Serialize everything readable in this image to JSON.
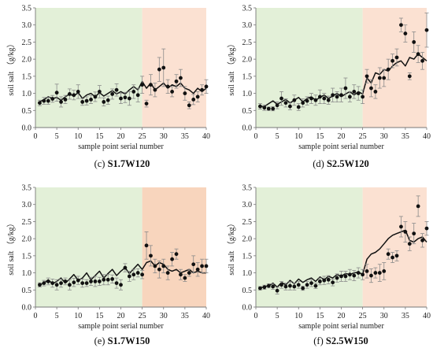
{
  "chart_data": [
    {
      "type": "scatter",
      "panel_letter": "(c)",
      "panel_name": " S1.7W120",
      "xlabel": "sample point serial number",
      "ylabel": "soil salt （g/kg）",
      "xlim": [
        0,
        40
      ],
      "ylim": [
        0,
        3.5
      ],
      "xticks": [
        0,
        5,
        10,
        15,
        20,
        25,
        30,
        35,
        40
      ],
      "yticks": [
        0.0,
        0.5,
        1.0,
        1.5,
        2.0,
        2.5,
        3.0,
        3.5
      ],
      "regions": [
        {
          "from": 0,
          "to": 25,
          "color": "#e3f0d8"
        },
        {
          "from": 25,
          "to": 40,
          "color": "#fbe1d2"
        }
      ],
      "series": [
        {
          "kind": "points",
          "x": [
            1,
            2,
            3,
            4,
            5,
            6,
            7,
            8,
            9,
            10,
            11,
            12,
            13,
            14,
            15,
            16,
            17,
            18,
            19,
            20,
            21,
            22,
            23,
            24,
            25,
            26,
            27,
            28,
            29,
            30,
            31,
            32,
            33,
            34,
            35,
            36,
            37,
            38,
            39,
            40
          ],
          "y": [
            0.72,
            0.78,
            0.78,
            0.84,
            1.02,
            0.75,
            0.82,
            0.98,
            0.95,
            1.05,
            0.75,
            0.78,
            0.82,
            0.9,
            1.05,
            0.75,
            0.8,
            0.98,
            1.1,
            0.85,
            0.88,
            0.85,
            1.05,
            0.95,
            1.25,
            0.7,
            1.25,
            1.1,
            1.7,
            1.75,
            1.2,
            1.05,
            1.35,
            1.45,
            1.0,
            0.65,
            0.82,
            0.9,
            1.1,
            1.2
          ],
          "err": [
            0.08,
            0.1,
            0.1,
            0.1,
            0.25,
            0.15,
            0.12,
            0.15,
            0.14,
            0.2,
            0.1,
            0.12,
            0.12,
            0.14,
            0.18,
            0.12,
            0.12,
            0.15,
            0.18,
            0.15,
            0.15,
            0.2,
            0.2,
            0.2,
            0.25,
            0.1,
            0.3,
            0.2,
            0.35,
            0.55,
            0.2,
            0.15,
            0.2,
            0.25,
            0.2,
            0.1,
            0.15,
            0.15,
            0.15,
            0.2
          ]
        },
        {
          "kind": "line",
          "x": [
            1,
            2,
            3,
            4,
            5,
            6,
            7,
            8,
            9,
            10,
            11,
            12,
            13,
            14,
            15,
            16,
            17,
            18,
            19,
            20,
            21,
            22,
            23,
            24,
            25,
            26,
            27,
            28,
            29,
            30,
            31,
            32,
            33,
            34,
            35,
            36,
            37,
            38,
            39,
            40
          ],
          "y": [
            0.75,
            0.82,
            0.9,
            0.85,
            0.88,
            0.8,
            0.9,
            0.98,
            0.92,
            1.02,
            0.85,
            0.95,
            1.0,
            0.9,
            1.02,
            0.92,
            1.0,
            1.08,
            0.98,
            1.05,
            0.98,
            1.1,
            1.2,
            1.1,
            1.35,
            1.15,
            1.3,
            1.1,
            1.2,
            1.3,
            1.15,
            1.25,
            1.2,
            1.3,
            1.15,
            1.1,
            1.0,
            1.15,
            1.05,
            1.15
          ]
        }
      ]
    },
    {
      "type": "scatter",
      "panel_letter": "(d)",
      "panel_name": " S2.5W120",
      "xlabel": "sample point serial number",
      "ylabel": "soil salt （g/kg）",
      "xlim": [
        0,
        40
      ],
      "ylim": [
        0,
        3.5
      ],
      "xticks": [
        0,
        5,
        10,
        15,
        20,
        25,
        30,
        35,
        40
      ],
      "yticks": [
        0.0,
        0.5,
        1.0,
        1.5,
        2.0,
        2.5,
        3.0,
        3.5
      ],
      "regions": [
        {
          "from": 0,
          "to": 25,
          "color": "#e3f0d8"
        },
        {
          "from": 25,
          "to": 40,
          "color": "#fbe1d2"
        }
      ],
      "series": [
        {
          "kind": "points",
          "x": [
            1,
            2,
            3,
            4,
            5,
            6,
            7,
            8,
            9,
            10,
            11,
            12,
            13,
            14,
            15,
            16,
            17,
            18,
            19,
            20,
            21,
            22,
            23,
            24,
            25,
            26,
            27,
            28,
            29,
            30,
            31,
            32,
            33,
            34,
            35,
            36,
            37,
            38,
            39,
            40
          ],
          "y": [
            0.62,
            0.58,
            0.55,
            0.55,
            0.65,
            0.85,
            0.72,
            0.62,
            0.8,
            0.6,
            0.72,
            0.78,
            0.85,
            0.8,
            0.9,
            0.85,
            0.8,
            0.95,
            0.9,
            0.95,
            1.15,
            0.9,
            1.05,
            1.0,
            0.9,
            1.5,
            1.15,
            1.05,
            1.45,
            1.45,
            1.7,
            1.95,
            2.05,
            3.0,
            2.75,
            1.5,
            2.5,
            2.15,
            1.95,
            2.85
          ],
          "err": [
            0.08,
            0.08,
            0.05,
            0.06,
            0.1,
            0.2,
            0.12,
            0.1,
            0.15,
            0.1,
            0.12,
            0.12,
            0.15,
            0.15,
            0.2,
            0.15,
            0.12,
            0.2,
            0.15,
            0.2,
            0.3,
            0.15,
            0.2,
            0.2,
            0.2,
            0.2,
            0.25,
            0.2,
            0.3,
            0.25,
            0.3,
            0.2,
            0.25,
            0.2,
            0.25,
            0.1,
            0.3,
            0.25,
            0.25,
            0.5
          ]
        },
        {
          "kind": "line",
          "x": [
            1,
            2,
            3,
            4,
            5,
            6,
            7,
            8,
            9,
            10,
            11,
            12,
            13,
            14,
            15,
            16,
            17,
            18,
            19,
            20,
            21,
            22,
            23,
            24,
            25,
            26,
            27,
            28,
            29,
            30,
            31,
            32,
            33,
            34,
            35,
            36,
            37,
            38,
            39,
            40
          ],
          "y": [
            0.6,
            0.62,
            0.7,
            0.78,
            0.68,
            0.75,
            0.82,
            0.72,
            0.8,
            0.88,
            0.75,
            0.85,
            0.9,
            0.8,
            0.88,
            0.95,
            0.85,
            0.92,
            1.0,
            0.9,
            0.98,
            1.05,
            0.95,
            1.05,
            0.98,
            1.45,
            1.3,
            1.6,
            1.55,
            1.7,
            1.65,
            1.8,
            1.9,
            1.95,
            1.8,
            2.05,
            2.0,
            2.15,
            2.05,
            1.95
          ]
        }
      ]
    },
    {
      "type": "scatter",
      "panel_letter": "(e)",
      "panel_name": " S1.7W150",
      "xlabel": "sample point serial number",
      "ylabel": "soil salt （g/kg）",
      "xlim": [
        0,
        40
      ],
      "ylim": [
        0,
        3.5
      ],
      "xticks": [
        0,
        5,
        10,
        15,
        20,
        25,
        30,
        35,
        40
      ],
      "yticks": [
        0.0,
        0.5,
        1.0,
        1.5,
        2.0,
        2.5,
        3.0,
        3.5
      ],
      "regions": [
        {
          "from": 0,
          "to": 25,
          "color": "#e3f0d8"
        },
        {
          "from": 25,
          "to": 40,
          "color": "#f8d5bd"
        }
      ],
      "series": [
        {
          "kind": "points",
          "x": [
            1,
            2,
            3,
            4,
            5,
            6,
            7,
            8,
            9,
            10,
            11,
            12,
            13,
            14,
            15,
            16,
            17,
            18,
            19,
            20,
            21,
            22,
            23,
            24,
            25,
            26,
            27,
            28,
            29,
            30,
            31,
            32,
            33,
            34,
            35,
            36,
            37,
            38,
            39,
            40
          ],
          "y": [
            0.65,
            0.7,
            0.75,
            0.7,
            0.65,
            0.7,
            0.75,
            0.65,
            0.72,
            0.78,
            0.7,
            0.7,
            0.75,
            0.75,
            0.75,
            0.8,
            0.8,
            0.82,
            0.7,
            0.65,
            1.15,
            0.9,
            0.95,
            1.0,
            0.95,
            1.8,
            1.5,
            1.2,
            1.1,
            1.2,
            1.0,
            1.4,
            1.55,
            0.95,
            0.85,
            1.0,
            1.25,
            1.1,
            1.2,
            1.2
          ],
          "err": [
            0.06,
            0.08,
            0.1,
            0.12,
            0.15,
            0.12,
            0.1,
            0.15,
            0.12,
            0.12,
            0.12,
            0.1,
            0.12,
            0.15,
            0.12,
            0.15,
            0.15,
            0.12,
            0.15,
            0.15,
            0.12,
            0.15,
            0.15,
            0.12,
            0.12,
            0.4,
            0.3,
            0.2,
            0.25,
            0.2,
            0.2,
            0.2,
            0.15,
            0.15,
            0.1,
            0.1,
            0.25,
            0.2,
            0.2,
            0.2
          ]
        },
        {
          "kind": "line",
          "x": [
            1,
            2,
            3,
            4,
            5,
            6,
            7,
            8,
            9,
            10,
            11,
            12,
            13,
            14,
            15,
            16,
            17,
            18,
            19,
            20,
            21,
            22,
            23,
            24,
            25,
            26,
            27,
            28,
            29,
            30,
            31,
            32,
            33,
            34,
            35,
            36,
            37,
            38,
            39,
            40
          ],
          "y": [
            0.65,
            0.7,
            0.8,
            0.68,
            0.75,
            0.85,
            0.7,
            0.82,
            0.95,
            0.78,
            0.85,
            1.0,
            0.8,
            0.92,
            1.05,
            0.85,
            0.98,
            1.1,
            0.92,
            1.05,
            1.15,
            0.98,
            1.12,
            1.25,
            1.1,
            1.3,
            1.35,
            1.2,
            1.3,
            1.25,
            1.1,
            1.05,
            1.1,
            1.0,
            1.05,
            1.1,
            1.0,
            1.05,
            1.0,
            1.0
          ]
        }
      ]
    },
    {
      "type": "scatter",
      "panel_letter": "(f)",
      "panel_name": " S2.5W150",
      "xlabel": "sample point serial number",
      "ylabel": "soil salt （g/kg）",
      "xlim": [
        0,
        40
      ],
      "ylim": [
        0,
        3.5
      ],
      "xticks": [
        0,
        5,
        10,
        15,
        20,
        25,
        30,
        35,
        40
      ],
      "yticks": [
        0.0,
        0.5,
        1.0,
        1.5,
        2.0,
        2.5,
        3.0,
        3.5
      ],
      "regions": [
        {
          "from": 0,
          "to": 25,
          "color": "#e3f0d8"
        },
        {
          "from": 25,
          "to": 40,
          "color": "#fbe1d2"
        }
      ],
      "series": [
        {
          "kind": "points",
          "x": [
            1,
            2,
            3,
            4,
            5,
            6,
            7,
            8,
            9,
            10,
            11,
            12,
            13,
            14,
            15,
            16,
            17,
            18,
            19,
            20,
            21,
            22,
            23,
            24,
            25,
            26,
            27,
            28,
            29,
            30,
            31,
            32,
            33,
            34,
            35,
            36,
            37,
            38,
            39,
            40
          ],
          "y": [
            0.55,
            0.58,
            0.62,
            0.6,
            0.48,
            0.65,
            0.6,
            0.62,
            0.6,
            0.65,
            0.55,
            0.65,
            0.7,
            0.62,
            0.75,
            0.78,
            0.8,
            0.72,
            0.85,
            0.9,
            0.9,
            0.95,
            0.92,
            1.0,
            0.95,
            1.05,
            0.92,
            1.0,
            1.0,
            1.05,
            1.55,
            1.45,
            1.5,
            2.35,
            2.2,
            1.85,
            2.15,
            2.95,
            1.95,
            2.3
          ],
          "err": [
            0.05,
            0.06,
            0.06,
            0.08,
            0.1,
            0.1,
            0.1,
            0.12,
            0.1,
            0.1,
            0.06,
            0.1,
            0.1,
            0.08,
            0.1,
            0.12,
            0.12,
            0.1,
            0.12,
            0.15,
            0.15,
            0.15,
            0.15,
            0.15,
            0.15,
            0.2,
            0.2,
            0.15,
            0.25,
            0.25,
            0.15,
            0.15,
            0.15,
            0.3,
            0.3,
            0.2,
            0.3,
            0.3,
            0.2,
            0.2
          ]
        },
        {
          "kind": "line",
          "x": [
            1,
            2,
            3,
            4,
            5,
            6,
            7,
            8,
            9,
            10,
            11,
            12,
            13,
            14,
            15,
            16,
            17,
            18,
            19,
            20,
            21,
            22,
            23,
            24,
            25,
            26,
            27,
            28,
            29,
            30,
            31,
            32,
            33,
            34,
            35,
            36,
            37,
            38,
            39,
            40
          ],
          "y": [
            0.55,
            0.6,
            0.62,
            0.7,
            0.58,
            0.72,
            0.65,
            0.78,
            0.68,
            0.82,
            0.72,
            0.8,
            0.85,
            0.75,
            0.88,
            0.8,
            0.9,
            0.85,
            0.95,
            0.9,
            0.98,
            0.95,
            1.0,
            1.02,
            0.95,
            1.4,
            1.55,
            1.6,
            1.7,
            1.85,
            2.0,
            2.1,
            2.15,
            2.2,
            2.25,
            1.95,
            1.9,
            2.0,
            2.05,
            1.9
          ]
        }
      ]
    }
  ]
}
